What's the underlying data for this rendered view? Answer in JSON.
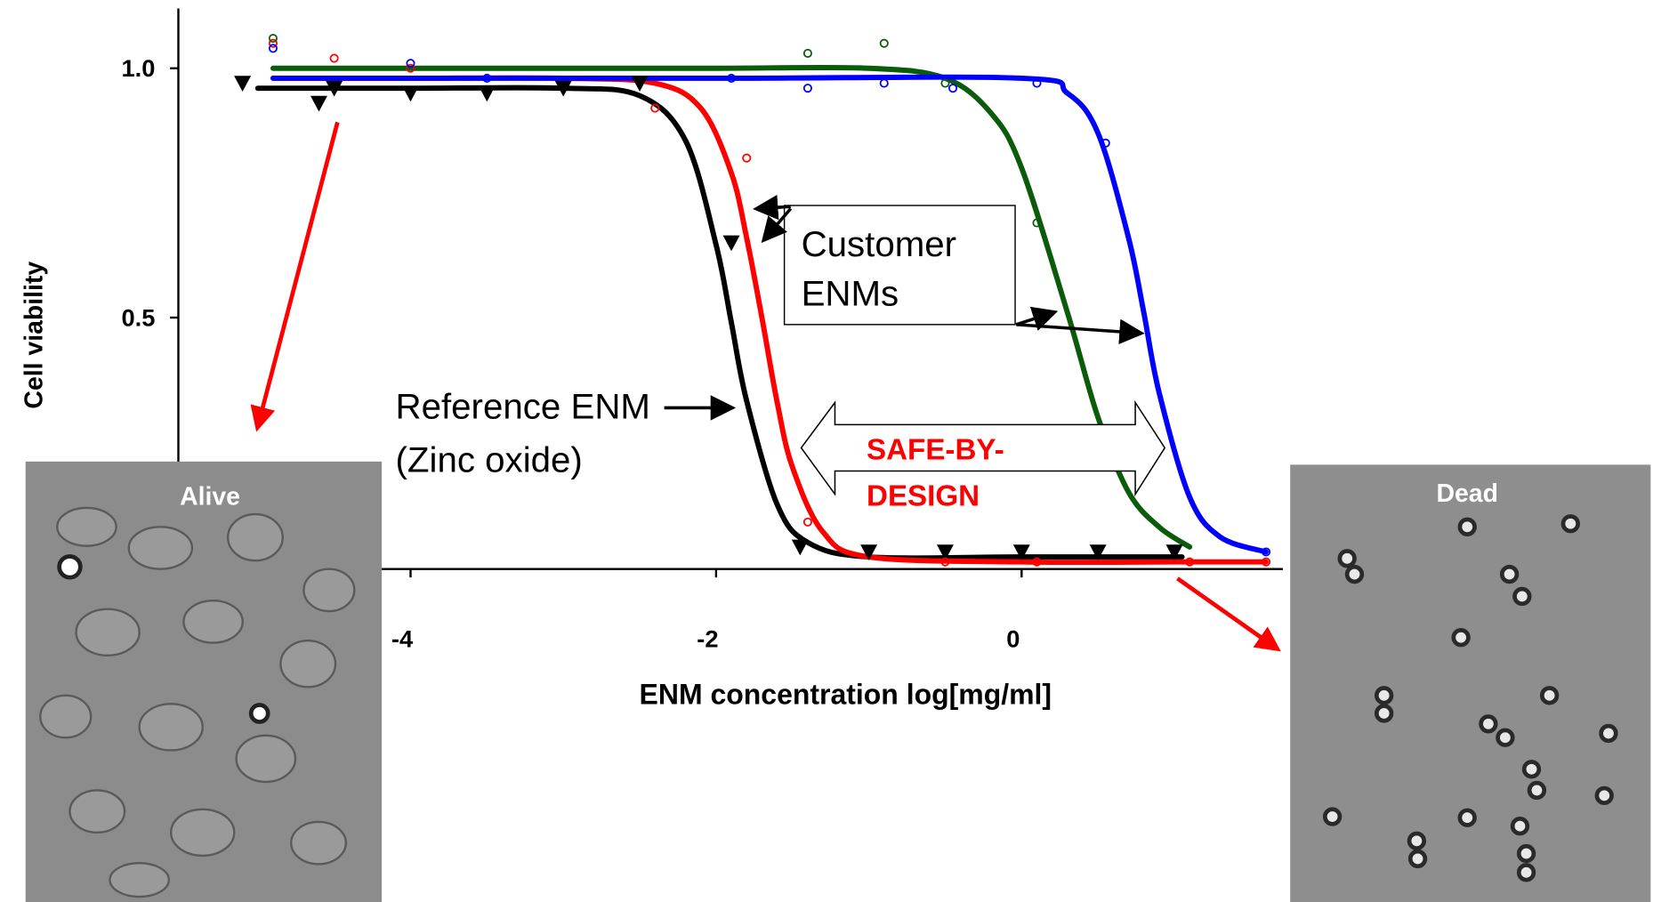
{
  "chart_data": {
    "type": "line",
    "xlabel": "ENM concentration log[mg/ml]",
    "ylabel": "Cell viability",
    "xlim": [
      -5.52,
      1.71
    ],
    "ylim": [
      0,
      1.12
    ],
    "xticks": [
      -4,
      -2,
      0
    ],
    "yticks": [
      {
        "value": 1,
        "label": "1.0"
      },
      {
        "value": 0.5,
        "label": "0.5"
      }
    ],
    "series": [
      {
        "style": "line",
        "color": "#000000",
        "x": [
          -5.0,
          -4,
          -3,
          -2.5,
          -2.2,
          -2.0,
          -1.9,
          -1.8,
          -1.6,
          -1.4,
          -1,
          0,
          1.05
        ],
        "values": [
          0.96,
          0.96,
          0.96,
          0.945,
          0.855,
          0.646,
          0.49,
          0.333,
          0.125,
          0.049,
          0.02,
          0.02,
          0.02
        ]
      },
      {
        "style": "line",
        "color": "#ff0000",
        "x": [
          -4.9,
          -4,
          -3,
          -2.4,
          -2.1,
          -1.9,
          -1.8,
          -1.7,
          -1.6,
          -1.5,
          -1.3,
          -1,
          0,
          1,
          1.6
        ],
        "values": [
          0.98,
          0.98,
          0.98,
          0.97,
          0.92,
          0.79,
          0.66,
          0.5,
          0.33,
          0.2,
          0.07,
          0.02,
          0.01,
          0.01,
          0.01
        ]
      },
      {
        "style": "line",
        "color": "#0a5c0a",
        "x": [
          -4.9,
          -3,
          -2,
          -1,
          -0.5,
          -0.2,
          0,
          0.3,
          0.5,
          0.7,
          0.9,
          1.1
        ],
        "values": [
          1.0,
          1.0,
          1.0,
          1.0,
          0.98,
          0.91,
          0.8,
          0.51,
          0.3,
          0.15,
          0.08,
          0.04
        ]
      },
      {
        "style": "line",
        "color": "#0000ff",
        "x": [
          -4.9,
          -2,
          0,
          0.3,
          0.5,
          0.7,
          0.8,
          0.9,
          1.1,
          1.3,
          1.6
        ],
        "values": [
          0.98,
          0.98,
          0.98,
          0.95,
          0.87,
          0.66,
          0.51,
          0.35,
          0.14,
          0.06,
          0.03
        ]
      },
      {
        "style": "markers",
        "marker": "triangle",
        "color": "#000000",
        "x": [
          -5.1,
          -4.6,
          -4.5,
          -4,
          -3.5,
          -3,
          -2.5,
          -1.9,
          -1.45,
          -1.0,
          -0.5,
          0,
          0.5,
          1.0
        ],
        "values": [
          0.97,
          0.93,
          0.96,
          0.95,
          0.95,
          0.96,
          0.97,
          0.65,
          0.04,
          0.03,
          0.03,
          0.03,
          0.03,
          0.03
        ]
      },
      {
        "style": "markers",
        "marker": "circle",
        "color": "#ff0000",
        "x": [
          -4.9,
          -4.5,
          -4,
          -2.4,
          -1.8,
          -1.4,
          -0.5,
          0.1,
          1.1,
          1.6
        ],
        "values": [
          1.05,
          1.02,
          1.0,
          0.92,
          0.82,
          0.09,
          0.01,
          0.01,
          0.01,
          0.01
        ]
      },
      {
        "style": "markers",
        "marker": "circle",
        "color": "#0a5c0a",
        "x": [
          -4.9,
          -1.4,
          -0.9,
          -0.5,
          0.1
        ],
        "values": [
          1.06,
          1.03,
          1.05,
          0.97,
          0.69
        ]
      },
      {
        "style": "markers",
        "marker": "circle",
        "color": "#0000ff",
        "x": [
          -4.9,
          -4,
          -3.5,
          -1.9,
          -1.4,
          -0.9,
          -0.45,
          0.1,
          0.55,
          1.6
        ],
        "values": [
          1.04,
          1.01,
          0.98,
          0.98,
          0.96,
          0.97,
          0.96,
          0.97,
          0.85,
          0.03
        ]
      }
    ]
  },
  "annotations": {
    "customer": [
      "Customer",
      "ENMs"
    ],
    "reference": [
      "Reference ENM",
      "(Zinc oxide)"
    ],
    "safe_by_design": [
      "SAFE-BY-",
      "DESIGN"
    ],
    "alive": "Alive",
    "dead": "Dead"
  }
}
